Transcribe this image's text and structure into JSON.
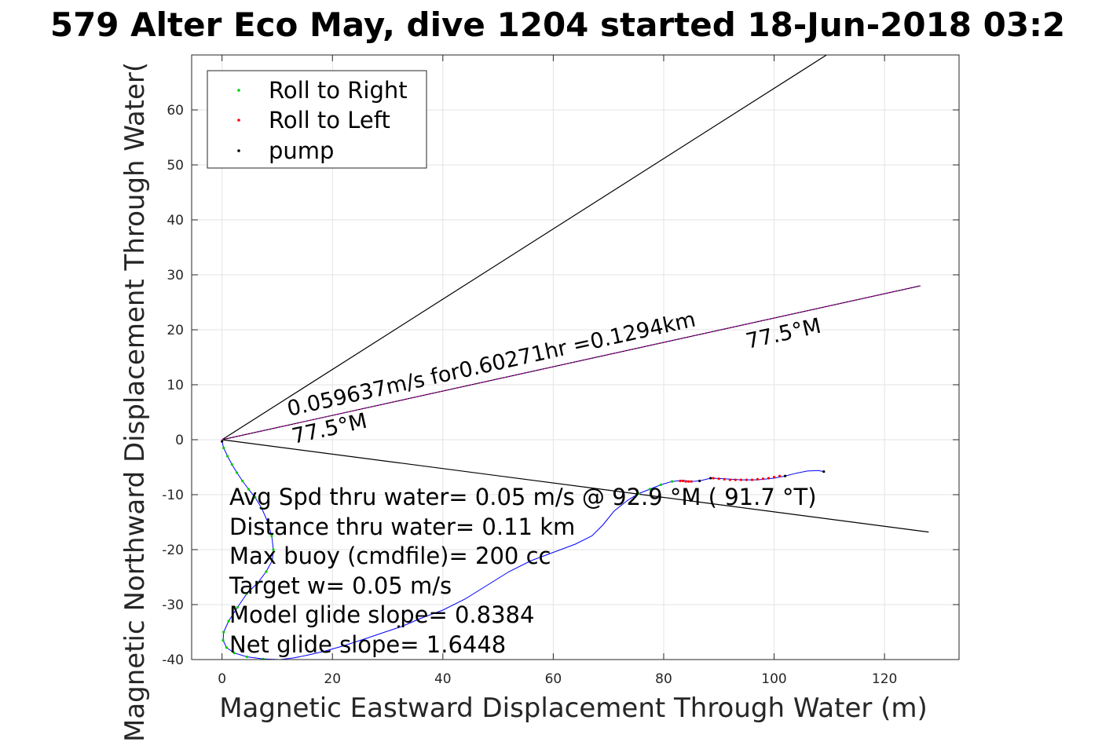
{
  "chart_data": {
    "type": "line",
    "title": "579 Alter Eco May, dive 1204 started 18-Jun-2018 03:2",
    "xlabel": "Magnetic Eastward Displacement Through Water (m)",
    "ylabel": "Magnetic Northward Displacement Through Water(",
    "xlim": [
      -5.5,
      133.5
    ],
    "ylim": [
      -40,
      70
    ],
    "xticks": [
      0,
      20,
      40,
      60,
      80,
      100,
      120
    ],
    "yticks": [
      -40,
      -30,
      -20,
      -10,
      0,
      10,
      20,
      30,
      40,
      50,
      60
    ],
    "grid": true,
    "legend": {
      "placement": "top-left",
      "entries": [
        {
          "label": "Roll to Right",
          "color": "#00cc00"
        },
        {
          "label": "Roll to Left",
          "color": "#ff0000"
        },
        {
          "label": "pump",
          "color": "#000000"
        }
      ]
    },
    "track": {
      "name": "glider track",
      "color": "#0000ff",
      "x": [
        0,
        0.3,
        1.0,
        1.8,
        2.7,
        3.7,
        4.8,
        6.0,
        7.2,
        8.3,
        9.0,
        9.3,
        9.1,
        8.0,
        6.5,
        4.5,
        2.8,
        1.2,
        0.3,
        0.2,
        0.8,
        2.2,
        4.5,
        7.5,
        10.5,
        13.0,
        15.5,
        18.5,
        22.0,
        26.0,
        29.5,
        32.5,
        36.0,
        40.0,
        44.0,
        48.0,
        52.0,
        56.0,
        60.0,
        64.0,
        67.0,
        69.0,
        71.0,
        73.5,
        75.5,
        77.5,
        79.5,
        81.5,
        83.5,
        85.0,
        86.5,
        88.5,
        91.0,
        94.0,
        97.0,
        100.0,
        102.0,
        104.0,
        106.0,
        108.0,
        109.0
      ],
      "y": [
        -0.3,
        -1.5,
        -3.0,
        -4.5,
        -6.0,
        -7.5,
        -9.0,
        -10.5,
        -12.5,
        -15.0,
        -17.5,
        -20.0,
        -22.0,
        -24.0,
        -26.0,
        -28.0,
        -30.5,
        -33.0,
        -35.0,
        -36.5,
        -37.8,
        -38.8,
        -39.5,
        -39.9,
        -40.0,
        -39.7,
        -39.2,
        -38.5,
        -37.5,
        -36.2,
        -35.0,
        -34.0,
        -32.5,
        -31.0,
        -29.0,
        -26.5,
        -24.0,
        -22.0,
        -20.5,
        -19.0,
        -17.5,
        -15.5,
        -13.0,
        -11.0,
        -9.8,
        -9.0,
        -8.2,
        -7.6,
        -7.4,
        -7.6,
        -7.5,
        -7.0,
        -7.1,
        -7.3,
        -7.3,
        -7.0,
        -6.6,
        -6.1,
        -5.7,
        -5.6,
        -5.8
      ]
    },
    "roll_right_points": {
      "x": [
        0.3,
        1.0,
        1.8,
        2.7,
        3.7,
        4.8,
        6.0,
        7.2,
        8.3,
        9.0,
        9.3,
        9.1,
        8.0,
        6.5,
        4.5,
        2.8,
        1.2,
        0.3,
        0.2,
        0.8,
        2.2,
        4.5,
        7.5,
        75.5,
        77.5,
        79.5,
        81.5
      ],
      "y": [
        -1.5,
        -3.0,
        -4.5,
        -6.0,
        -7.5,
        -9.0,
        -10.5,
        -12.5,
        -15.0,
        -17.5,
        -20.0,
        -22.0,
        -24.0,
        -26.0,
        -28.0,
        -30.5,
        -33.0,
        -35.0,
        -36.5,
        -37.8,
        -38.8,
        -39.5,
        -39.9,
        -9.8,
        -9.0,
        -8.2,
        -7.6
      ]
    },
    "roll_left_points": {
      "x": [
        83.0,
        83.5,
        84.0,
        84.5,
        85.0,
        89.0,
        90.0,
        91.0,
        92.0,
        93.0,
        94.0,
        95.0,
        96.0,
        97.0,
        98.0,
        99.0,
        100.0,
        101.0
      ],
      "y": [
        -7.5,
        -7.5,
        -7.6,
        -7.6,
        -7.6,
        -7.0,
        -7.1,
        -7.2,
        -7.3,
        -7.3,
        -7.3,
        -7.3,
        -7.3,
        -7.2,
        -7.1,
        -7.0,
        -6.8,
        -6.6
      ]
    },
    "pump_points": {
      "x": [
        0,
        32.0,
        86.5,
        88.5,
        102.0,
        109.0
      ],
      "y": [
        -0.3,
        -34.0,
        -7.5,
        -7.0,
        -6.6,
        -5.8
      ]
    },
    "reference_lines": [
      {
        "name": "upper bound",
        "color": "#000000",
        "x": [
          0,
          109.5
        ],
        "y": [
          0,
          70
        ]
      },
      {
        "name": "lower bound",
        "color": "#000000",
        "x": [
          0,
          128
        ],
        "y": [
          0,
          -16.8
        ]
      },
      {
        "name": "average heading",
        "color": "#000000",
        "x": [
          0,
          126.5
        ],
        "y": [
          0,
          28
        ]
      },
      {
        "name": "average heading overlay",
        "color": "#cc00cc",
        "x": [
          0,
          126.5
        ],
        "y": [
          0,
          28
        ]
      }
    ],
    "annotations": {
      "speed_line": "0.059637m/s for0.60271hr =0.1294km",
      "heading_far": "77.5°M",
      "heading_near": "77.5°M"
    },
    "stats": [
      "Avg Spd thru water=  0.05 m/s @  92.9 °M ( 91.7 °T)",
      "Distance thru water=  0.11 km",
      "Max buoy (cmdfile)= 200 cc",
      "Target w= 0.05 m/s",
      "Model glide slope= 0.8384",
      "Net glide slope= 1.6448"
    ]
  }
}
